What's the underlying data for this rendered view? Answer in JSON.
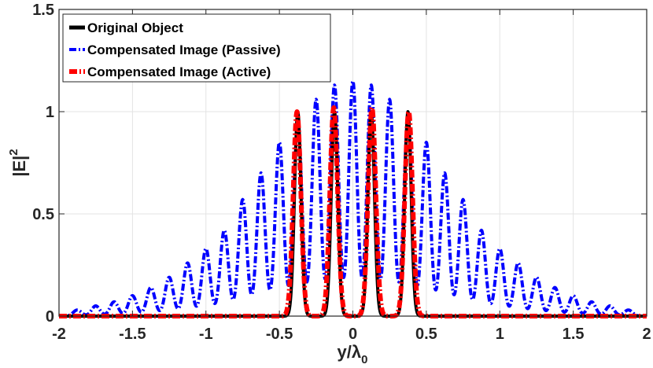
{
  "chart_data": {
    "type": "line",
    "title": "",
    "xlabel": "y/λ",
    "xlabel_sub": "0",
    "ylabel": "|E|",
    "ylabel_sup": "2",
    "xlim": [
      -2,
      2
    ],
    "ylim": [
      0,
      1.5
    ],
    "xticks": [
      -2,
      -1.5,
      -1,
      -0.5,
      0,
      0.5,
      1,
      1.5,
      2
    ],
    "xtick_labels": [
      "-2",
      "-1.5",
      "-1",
      "-0.5",
      "0",
      "0.5",
      "1",
      "1.5",
      "2"
    ],
    "yticks": [
      0,
      0.5,
      1,
      1.5
    ],
    "ytick_labels": [
      "0",
      "0.5",
      "1",
      "1.5"
    ],
    "grid": true,
    "legend_position": "top-left",
    "series": [
      {
        "name": "Original Object",
        "color": "#000000",
        "style": "solid",
        "description": "Four narrow peaks of height 1",
        "peak_positions": [
          -0.375,
          -0.125,
          0.125,
          0.375
        ],
        "peak_heights": [
          1.0,
          1.0,
          1.0,
          1.0
        ]
      },
      {
        "name": "Compensated Image (Passive)",
        "color": "#0000ff",
        "style": "dash-dot",
        "description": "Oscillating fringes under a bell-shaped envelope",
        "peak_positions": [
          -1.875,
          -1.75,
          -1.625,
          -1.5,
          -1.375,
          -1.25,
          -1.125,
          -1.0,
          -0.875,
          -0.75,
          -0.625,
          -0.5,
          -0.375,
          -0.25,
          -0.125,
          0.0,
          0.125,
          0.25,
          0.375,
          0.5,
          0.625,
          0.75,
          0.875,
          1.0,
          1.125,
          1.25,
          1.375,
          1.5,
          1.625,
          1.75,
          1.875
        ],
        "peak_heights": [
          0.03,
          0.05,
          0.07,
          0.1,
          0.14,
          0.19,
          0.26,
          0.33,
          0.42,
          0.57,
          0.7,
          0.85,
          0.96,
          1.06,
          1.13,
          1.15,
          1.13,
          1.06,
          0.96,
          0.85,
          0.7,
          0.57,
          0.42,
          0.33,
          0.26,
          0.19,
          0.14,
          0.1,
          0.07,
          0.05,
          0.03
        ]
      },
      {
        "name": "Compensated Image (Active)",
        "color": "#ff0000",
        "style": "dash-dot",
        "description": "Four peaks closely matching the original object with small side lobes",
        "peak_positions": [
          -0.38,
          -0.13,
          0.13,
          0.38
        ],
        "peak_heights": [
          1.0,
          1.02,
          1.02,
          1.0
        ]
      }
    ]
  }
}
